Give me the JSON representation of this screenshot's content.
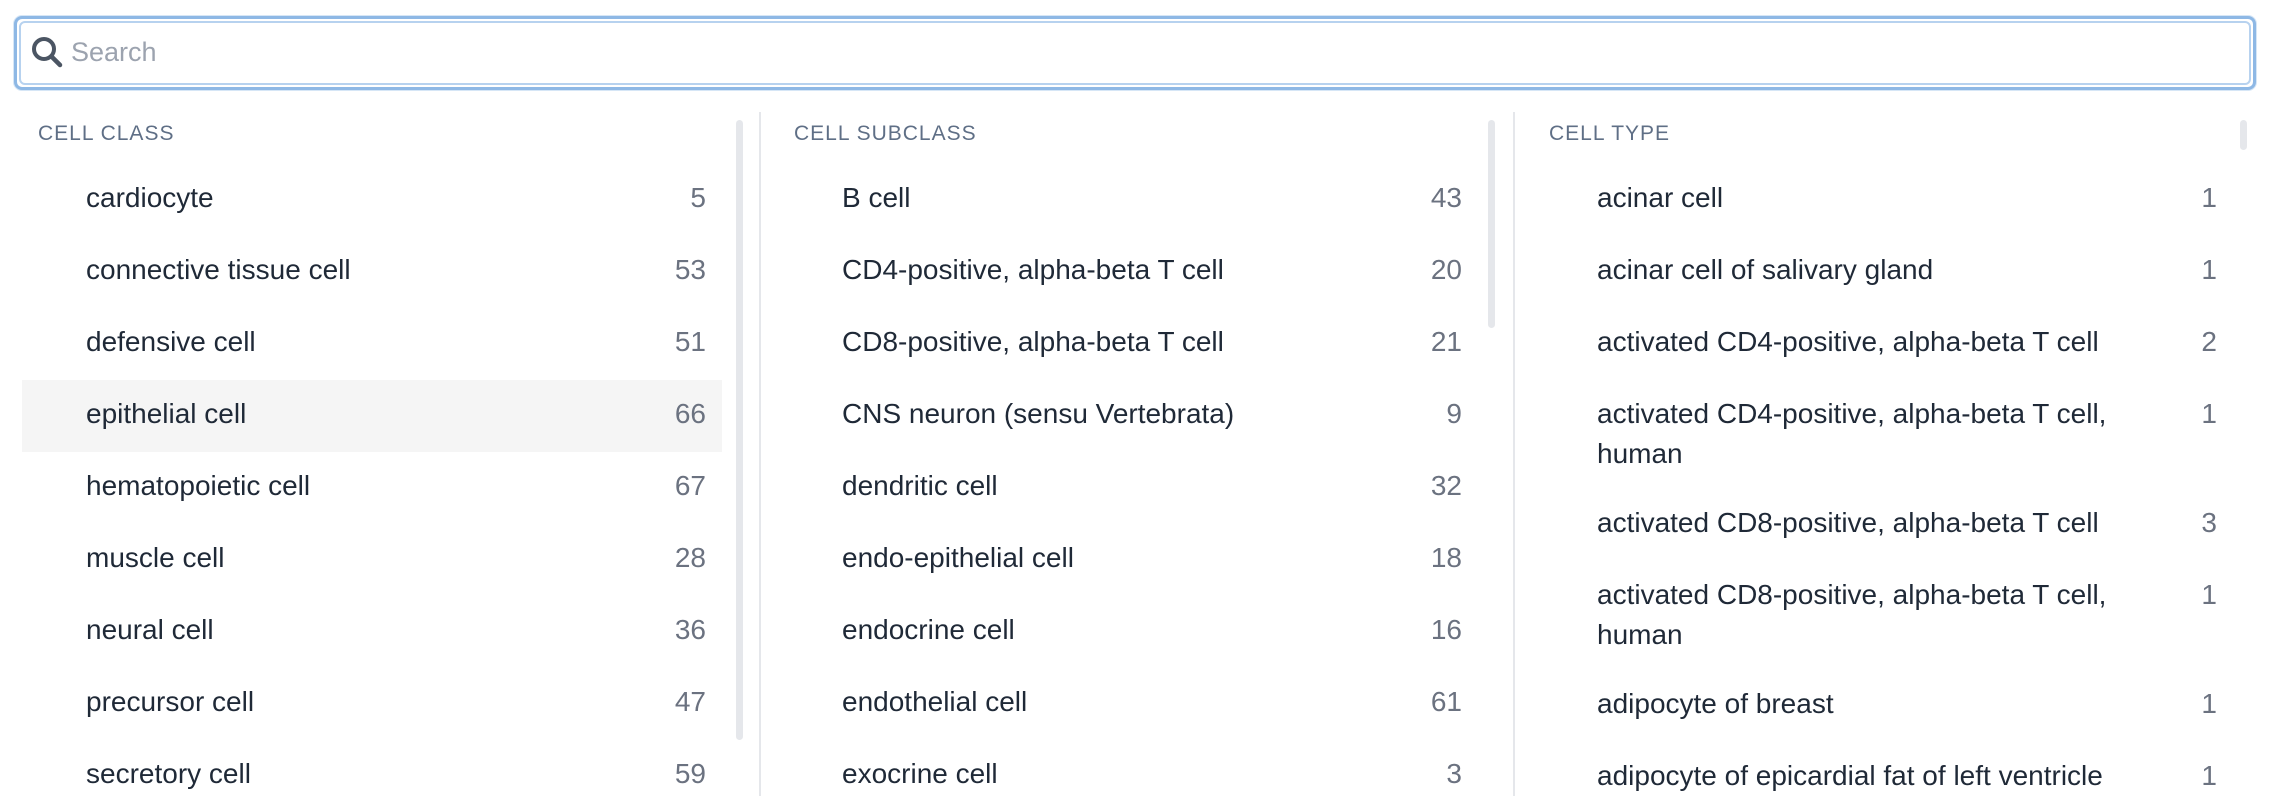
{
  "search": {
    "placeholder": "Search",
    "value": ""
  },
  "columns": [
    {
      "header": "CELL CLASS",
      "items": [
        {
          "label": "cardiocyte",
          "count": "5"
        },
        {
          "label": "connective tissue cell",
          "count": "53"
        },
        {
          "label": "defensive cell",
          "count": "51"
        },
        {
          "label": "epithelial cell",
          "count": "66"
        },
        {
          "label": "hematopoietic cell",
          "count": "67"
        },
        {
          "label": "muscle cell",
          "count": "28"
        },
        {
          "label": "neural cell",
          "count": "36"
        },
        {
          "label": "precursor cell",
          "count": "47"
        },
        {
          "label": "secretory cell",
          "count": "59"
        }
      ]
    },
    {
      "header": "CELL SUBCLASS",
      "items": [
        {
          "label": "B cell",
          "count": "43"
        },
        {
          "label": "CD4-positive, alpha-beta T cell",
          "count": "20"
        },
        {
          "label": "CD8-positive, alpha-beta T cell",
          "count": "21"
        },
        {
          "label": "CNS neuron (sensu Vertebrata)",
          "count": "9"
        },
        {
          "label": "dendritic cell",
          "count": "32"
        },
        {
          "label": "endo-epithelial cell",
          "count": "18"
        },
        {
          "label": "endocrine cell",
          "count": "16"
        },
        {
          "label": "endothelial cell",
          "count": "61"
        },
        {
          "label": "exocrine cell",
          "count": "3"
        }
      ]
    },
    {
      "header": "CELL TYPE",
      "items": [
        {
          "label": "acinar cell",
          "count": "1"
        },
        {
          "label": "acinar cell of salivary gland",
          "count": "1"
        },
        {
          "label": "activated CD4-positive, alpha-beta T cell",
          "count": "2"
        },
        {
          "label": "activated CD4-positive, alpha-beta T cell, human",
          "count": "1"
        },
        {
          "label": "activated CD8-positive, alpha-beta T cell",
          "count": "3"
        },
        {
          "label": "activated CD8-positive, alpha-beta T cell, human",
          "count": "1"
        },
        {
          "label": "adipocyte of breast",
          "count": "1"
        },
        {
          "label": "adipocyte of epicardial fat of left ventricle",
          "count": "1"
        }
      ]
    }
  ],
  "colors": {
    "focus_ring": "#8eb8e5",
    "highlight_row": "#f5f5f5",
    "header_text": "#5f6f86",
    "count_text": "#6b7280"
  },
  "icons": {
    "search": "search-icon"
  }
}
